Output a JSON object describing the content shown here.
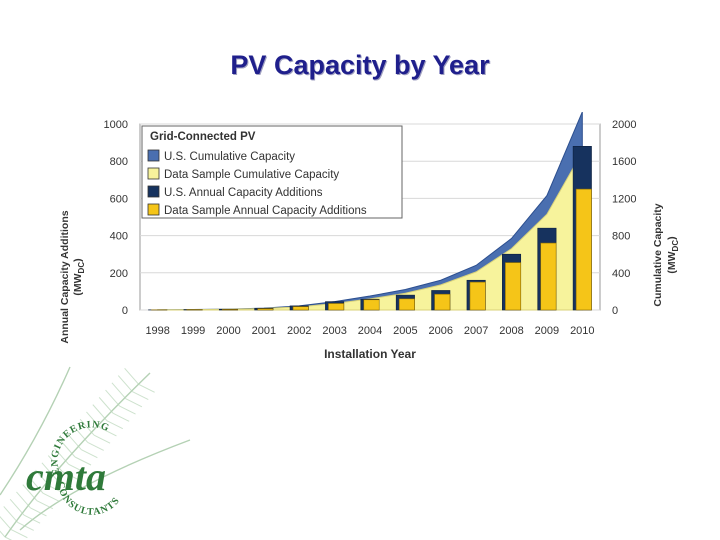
{
  "slide": {
    "title": "PV Capacity by Year"
  },
  "chart_data": {
    "type": "bar",
    "title": "Grid-Connected PV",
    "xlabel": "Installation Year",
    "ylabel": "Annual Capacity Additions (MWDC)",
    "y2label": "Cumulative Capacity (MWDC)",
    "categories": [
      "1998",
      "1999",
      "2000",
      "2001",
      "2002",
      "2003",
      "2004",
      "2005",
      "2006",
      "2007",
      "2008",
      "2009",
      "2010"
    ],
    "ylim": [
      0,
      1000
    ],
    "y2lim": [
      0,
      2000
    ],
    "yticks": [
      0,
      200,
      400,
      600,
      800,
      1000
    ],
    "y2ticks": [
      0,
      400,
      800,
      1200,
      1600,
      2000
    ],
    "legend_position": "top-left",
    "series": [
      {
        "name": "U.S. Cumulative Capacity",
        "type": "area",
        "axis": "right",
        "color": "#4a6fb0",
        "values": [
          2,
          6,
          10,
          20,
          44,
          90,
          150,
          220,
          320,
          480,
          770,
          1230,
          2130
        ]
      },
      {
        "name": "Data Sample Cumulative Capacity",
        "type": "area",
        "axis": "right",
        "color": "#f7f39c",
        "values": [
          1,
          4,
          8,
          16,
          34,
          70,
          120,
          180,
          270,
          410,
          660,
          1030,
          1700
        ]
      },
      {
        "name": "U.S. Annual Capacity Additions",
        "type": "bar",
        "axis": "left",
        "color": "#16325e",
        "values": [
          1,
          2,
          4,
          9,
          22,
          45,
          58,
          80,
          105,
          160,
          300,
          440,
          880
        ]
      },
      {
        "name": "Data Sample Annual Capacity Additions",
        "type": "bar",
        "axis": "left",
        "color": "#f5c518",
        "values": [
          1,
          2,
          3,
          7,
          18,
          35,
          55,
          60,
          85,
          150,
          255,
          360,
          650
        ]
      }
    ]
  },
  "logo": {
    "text": "cmta",
    "arc_top": "ENGINEERING",
    "arc_bottom": "CONSULTANTS"
  }
}
